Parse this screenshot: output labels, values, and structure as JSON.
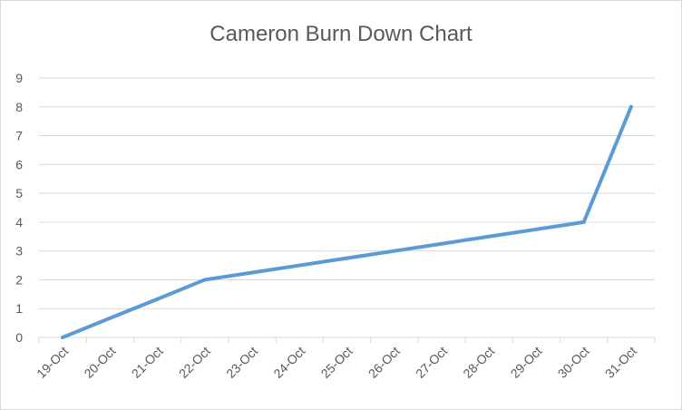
{
  "chart_data": {
    "type": "line",
    "title": "Cameron Burn Down Chart",
    "categories": [
      "19-Oct",
      "20-Oct",
      "21-Oct",
      "22-Oct",
      "23-Oct",
      "24-Oct",
      "25-Oct",
      "26-Oct",
      "27-Oct",
      "28-Oct",
      "29-Oct",
      "30-Oct",
      "31-Oct"
    ],
    "series": [
      {
        "values": [
          0,
          0.67,
          1.33,
          2,
          2.25,
          2.5,
          2.75,
          3,
          3.25,
          3.5,
          3.75,
          4,
          8
        ]
      }
    ],
    "ylim": [
      0,
      9
    ],
    "yticks": [
      "0",
      "1",
      "2",
      "3",
      "4",
      "5",
      "6",
      "7",
      "8",
      "9"
    ],
    "grid": true,
    "legend": "none",
    "colors": {
      "line": "#5b9bd5",
      "grid": "#d9d9d9",
      "text": "#595959"
    }
  }
}
